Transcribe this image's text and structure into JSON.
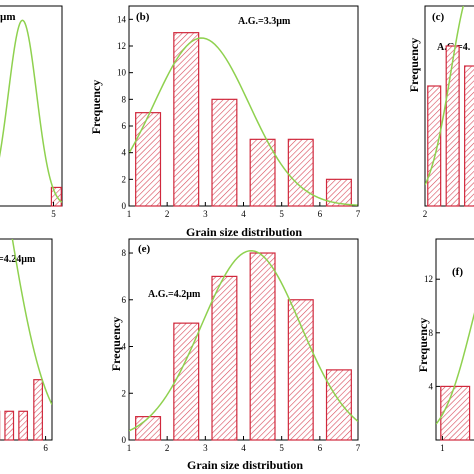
{
  "colors": {
    "bar_stroke": "#d0283c",
    "hatch": "#d84a5a",
    "fit_curve": "#8fd14f",
    "axis": "#000000"
  },
  "chart_data": [
    {
      "type": "bar",
      "panel": "",
      "annotation": "µm",
      "x": [
        5.2
      ],
      "values": [
        1.3
      ],
      "bar_width": 0.7,
      "xticks": [
        5
      ],
      "yticks": [],
      "xlim": [
        0.5,
        5.6
      ],
      "ylim": [
        0,
        14
      ],
      "fit_curve": {
        "mean": 2.8,
        "sd": 1.0,
        "peak": 13
      },
      "xlabel": "",
      "ylabel": ""
    },
    {
      "type": "bar",
      "panel": "(b)",
      "annotation": "A.G.=3.3µm",
      "x": [
        1.5,
        2.5,
        3.5,
        4.5,
        5.5,
        6.5
      ],
      "values": [
        7,
        13,
        8,
        5,
        5,
        2
      ],
      "bar_width": 0.65,
      "xticks": [
        1,
        2,
        3,
        4,
        5,
        6,
        7
      ],
      "yticks": [
        0,
        2,
        4,
        6,
        8,
        10,
        12,
        14
      ],
      "xlim": [
        1,
        7
      ],
      "ylim": [
        0,
        15
      ],
      "fit_curve": {
        "mean": 2.9,
        "sd": 1.25,
        "peak": 12.6
      },
      "xlabel": "Grain size distribution",
      "ylabel": "Frequency"
    },
    {
      "type": "bar",
      "panel": "(c)",
      "annotation": "A.G.=4.",
      "x": [
        2.5,
        3.5,
        4.5
      ],
      "values": [
        3,
        4,
        3.5
      ],
      "bar_width": 0.7,
      "xticks": [
        2
      ],
      "yticks": [],
      "xlim": [
        2,
        5.2
      ],
      "ylim": [
        0,
        5
      ],
      "fit_curve": {
        "mean": 4.6,
        "sd": 1.2,
        "peak": 5.5
      },
      "xlabel": "",
      "ylabel": "Frequency"
    },
    {
      "type": "bar",
      "panel": "",
      "annotation": "=4.24µm",
      "x": [
        1.3,
        2.6,
        3.9,
        5.3
      ],
      "values": [
        1,
        1,
        1,
        2.1
      ],
      "bar_width": 0.8,
      "xticks": [
        6
      ],
      "yticks": [],
      "xlim": [
        0.8,
        6.6
      ],
      "ylim": [
        0,
        7
      ],
      "fit_curve": {
        "mean": -1,
        "sd": 3.5,
        "peak": 13
      },
      "xlabel": "",
      "ylabel": ""
    },
    {
      "type": "bar",
      "panel": "(e)",
      "annotation": "A.G.=4.2µm",
      "x": [
        1.5,
        2.5,
        3.5,
        4.5,
        5.5,
        6.5
      ],
      "values": [
        1,
        5,
        7,
        8,
        6,
        3
      ],
      "bar_width": 0.65,
      "xticks": [
        1,
        2,
        3,
        4,
        5,
        6,
        7
      ],
      "yticks": [
        0,
        2,
        4,
        6,
        8
      ],
      "xlim": [
        1,
        7
      ],
      "ylim": [
        0,
        8.6
      ],
      "fit_curve": {
        "mean": 4.2,
        "sd": 1.3,
        "peak": 8.1
      },
      "xlabel": "Grain size distribution",
      "ylabel": "Frequency"
    },
    {
      "type": "bar",
      "panel": "(f)",
      "annotation": "",
      "x": [
        1.4
      ],
      "values": [
        4
      ],
      "bar_width": 0.9,
      "xticks": [
        1
      ],
      "yticks": [
        4,
        8,
        12
      ],
      "xlim": [
        0.8,
        2.3
      ],
      "ylim": [
        0,
        15
      ],
      "fit_curve": {
        "mean": 2.8,
        "sd": 0.9,
        "peak": 14
      },
      "xlabel": "",
      "ylabel": "Frequency"
    }
  ]
}
